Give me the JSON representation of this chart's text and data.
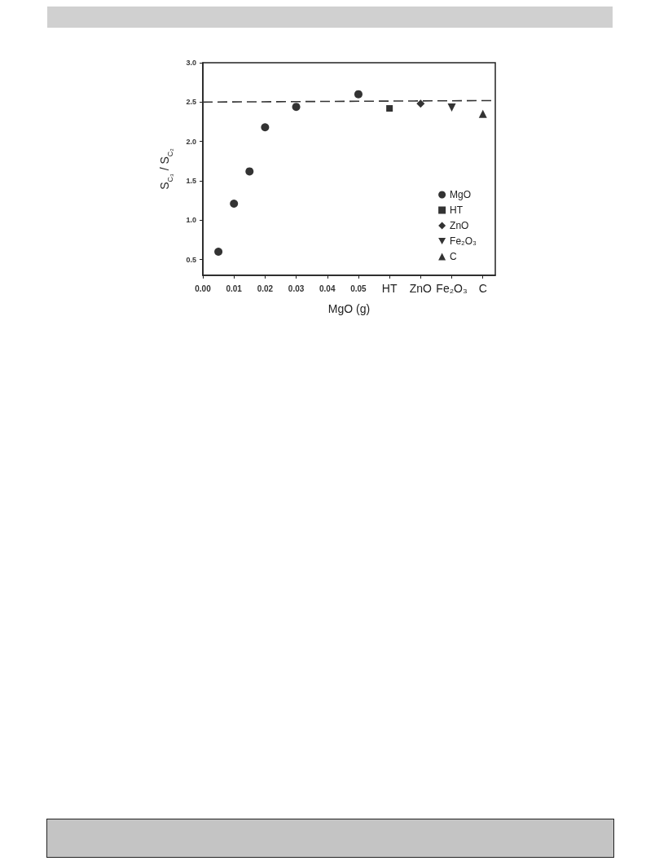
{
  "chart_data": {
    "type": "scatter",
    "xlabel": "MgO (g)",
    "ylabel": "S$_{C₃}$ / S$_{C₂}$",
    "xlim": [
      0,
      0.094
    ],
    "ylim": [
      0.3,
      3.0
    ],
    "xticks": [
      {
        "value": 0,
        "label": "0.00"
      },
      {
        "value": 0.01,
        "label": "0.01"
      },
      {
        "value": 0.02,
        "label": "0.02"
      },
      {
        "value": 0.03,
        "label": "0.03"
      },
      {
        "value": 0.04,
        "label": "0.04"
      },
      {
        "value": 0.05,
        "label": "0.05"
      },
      {
        "value": 0.06,
        "label": "HT"
      },
      {
        "value": 0.07,
        "label": "ZnO"
      },
      {
        "value": 0.08,
        "label": "Fe₂O₃"
      },
      {
        "value": 0.09,
        "label": "C"
      }
    ],
    "yticks": [
      0.5,
      {
        "value": 1,
        "label": "1.0"
      },
      1.5,
      {
        "value": 2,
        "label": "2.0"
      },
      2.5,
      {
        "value": 3,
        "label": "3.0"
      }
    ],
    "grid": false,
    "legend": "right",
    "series": [
      {
        "name": "MgO",
        "color": "#000000",
        "marker": "circle",
        "x": [
          0.005,
          0.01,
          0.015,
          0.02,
          0.03,
          0.05
        ],
        "values": [
          0.6,
          1.21,
          1.62,
          2.18,
          2.44,
          2.6
        ]
      },
      {
        "name": "HT",
        "color": "#000000",
        "marker": "square",
        "x": [
          0.06
        ],
        "values": [
          2.42
        ]
      },
      {
        "name": "ZnO",
        "color": "#000000",
        "marker": "diamond",
        "x": [
          0.07
        ],
        "values": [
          2.48
        ]
      },
      {
        "name": "Fe₂O₃",
        "color": "#000000",
        "marker": "triangle-down",
        "x": [
          0.08
        ],
        "values": [
          2.43
        ]
      },
      {
        "name": "C",
        "color": "#000000",
        "marker": "triangle",
        "x": [
          0.09
        ],
        "values": [
          2.35
        ]
      },
      {
        "type": "line",
        "color": "#333333",
        "marker": "none",
        "line_style": "dashed",
        "x": [
          0,
          0.094
        ],
        "values": [
          2.5,
          2.52
        ]
      }
    ]
  }
}
